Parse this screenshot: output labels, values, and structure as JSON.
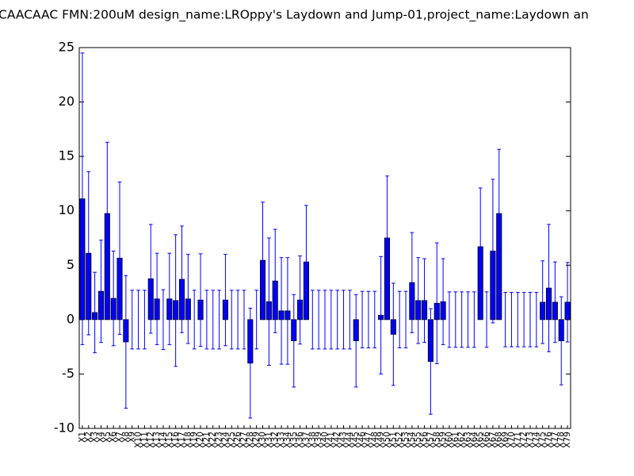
{
  "chart_data": {
    "type": "bar",
    "title": "CAACAAC  FMN:200uM  design_name:LROppy's Laydown and Jump-01,project_name:Laydown an",
    "categories": [
      "X1",
      "X2",
      "X3",
      "X4",
      "X5",
      "X6",
      "X7",
      "X8",
      "X9",
      "X10",
      "X11",
      "X12",
      "X13",
      "X14",
      "X15",
      "X16",
      "X17",
      "X18",
      "X19",
      "X20",
      "X21",
      "X22",
      "X23",
      "X24",
      "X25",
      "X26",
      "X27",
      "X28",
      "X29",
      "X30",
      "X31",
      "X32",
      "X33",
      "X34",
      "X35",
      "X36",
      "X37",
      "X38",
      "X39",
      "X40",
      "X41",
      "X42",
      "X43",
      "X44",
      "X45",
      "X46",
      "X47",
      "X48",
      "X49",
      "X50",
      "X51",
      "X52",
      "X53",
      "X54",
      "X55",
      "X56",
      "X57",
      "X58",
      "X59",
      "X60",
      "X61",
      "X62",
      "X63",
      "X64",
      "X65",
      "X66",
      "X67",
      "X68",
      "X69",
      "X70",
      "X71",
      "X72",
      "X73",
      "X74",
      "X75",
      "X76",
      "X77",
      "X78",
      "X79"
    ],
    "values": [
      11.1,
      6.1,
      0.65,
      2.6,
      9.75,
      1.95,
      5.65,
      -2.05,
      0,
      0,
      0,
      3.75,
      1.9,
      0,
      1.9,
      1.75,
      3.7,
      1.9,
      0,
      1.8,
      0,
      0,
      0,
      1.8,
      0,
      0,
      0,
      -4.0,
      0,
      5.45,
      1.65,
      3.55,
      0.8,
      0.8,
      -1.95,
      1.8,
      5.3,
      0,
      0,
      0,
      0,
      0,
      0,
      0,
      -1.95,
      0,
      0,
      0,
      0.4,
      7.5,
      -1.35,
      0,
      0,
      3.4,
      1.75,
      1.75,
      -3.85,
      1.5,
      1.65,
      0,
      0,
      0,
      0,
      0,
      6.7,
      0,
      6.3,
      9.75,
      0,
      0,
      0,
      0,
      0,
      0,
      1.6,
      2.9,
      1.6,
      -1.95,
      1.6
    ],
    "errors": [
      13.4,
      7.5,
      3.7,
      4.7,
      6.55,
      4.35,
      7.0,
      6.1,
      2.7,
      2.7,
      2.7,
      5.0,
      4.2,
      2.75,
      4.2,
      6.05,
      4.9,
      4.1,
      2.7,
      4.25,
      2.7,
      2.7,
      2.7,
      4.2,
      2.7,
      2.7,
      2.7,
      5.05,
      2.7,
      5.35,
      5.85,
      4.75,
      4.9,
      4.9,
      4.25,
      4.05,
      5.2,
      2.7,
      2.7,
      2.7,
      2.7,
      2.7,
      2.7,
      2.7,
      4.25,
      2.6,
      2.6,
      2.6,
      5.4,
      5.7,
      4.7,
      2.6,
      2.6,
      4.6,
      3.95,
      3.85,
      4.85,
      5.55,
      3.95,
      2.55,
      2.55,
      2.55,
      2.55,
      2.55,
      5.4,
      2.55,
      6.6,
      5.9,
      2.5,
      2.5,
      2.5,
      2.5,
      2.5,
      2.5,
      3.8,
      5.85,
      3.7,
      4.05,
      3.65
    ],
    "color": "#0000ff",
    "ecolor": "#0000ff",
    "ylim": [
      -10,
      25
    ],
    "yticks": [
      -10,
      -5,
      0,
      5,
      10,
      15,
      20,
      25
    ]
  }
}
